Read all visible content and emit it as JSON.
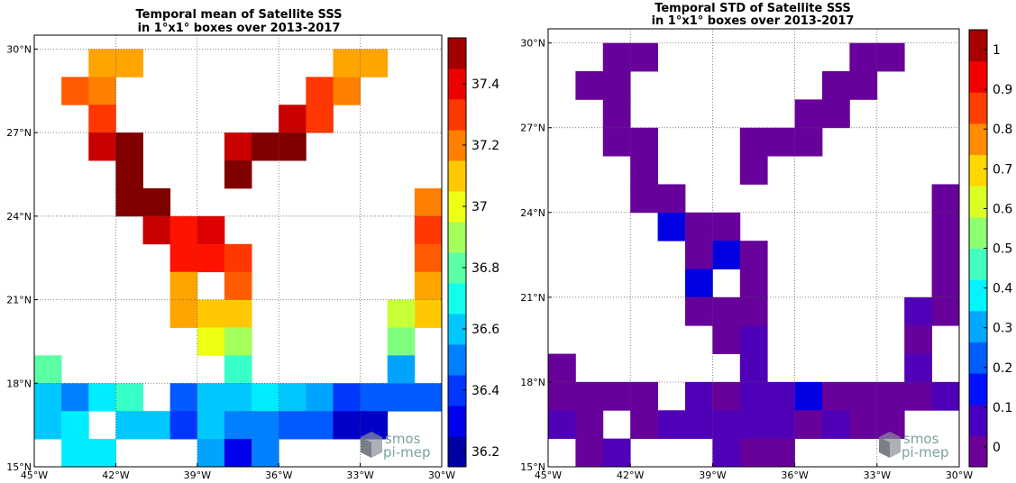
{
  "chart_data": [
    {
      "type": "heatmap",
      "title": "Temporal mean of Satellite SSS",
      "subtitle": "in 1°x1° boxes over 2013-2017",
      "xlim": [
        -45,
        -30
      ],
      "ylim": [
        15,
        30.5
      ],
      "x_ticks": [
        -45,
        -42,
        -39,
        -36,
        -33,
        -30
      ],
      "x_tick_labels": [
        "45°W",
        "42°W",
        "39°W",
        "36°W",
        "33°W",
        "30°W"
      ],
      "y_ticks": [
        15,
        18,
        21,
        24,
        27,
        30
      ],
      "y_tick_labels": [
        "15°N",
        "18°N",
        "21°N",
        "24°N",
        "27°N",
        "30°N"
      ],
      "grid": true,
      "colorbar": {
        "range": [
          36.15,
          37.55
        ],
        "ticks": [
          36.2,
          36.4,
          36.6,
          36.8,
          37,
          37.2,
          37.4
        ],
        "tick_labels": [
          "36.2",
          "36.4",
          "36.6",
          "36.8",
          "37",
          "37.2",
          "37.4"
        ]
      },
      "cells_note": "each cell: [lon_west, lat_south, value]",
      "cells": [
        [
          -43,
          29,
          37.15
        ],
        [
          -42,
          29,
          37.15
        ],
        [
          -44,
          28,
          37.25
        ],
        [
          -43,
          28,
          37.2
        ],
        [
          -43,
          27,
          37.3
        ],
        [
          -43,
          26,
          37.45
        ],
        [
          -42,
          26,
          37.55
        ],
        [
          -42,
          25,
          37.55
        ],
        [
          -42,
          24,
          37.55
        ],
        [
          -41,
          24,
          37.55
        ],
        [
          -41,
          23,
          37.45
        ],
        [
          -40,
          23,
          37.35
        ],
        [
          -39,
          23,
          37.42
        ],
        [
          -40,
          22,
          37.35
        ],
        [
          -39,
          22,
          37.35
        ],
        [
          -38,
          22,
          37.3
        ],
        [
          -40,
          21,
          37.15
        ],
        [
          -38,
          21,
          37.25
        ],
        [
          -40,
          20,
          37.15
        ],
        [
          -39,
          20,
          37.1
        ],
        [
          -38,
          20,
          37.1
        ],
        [
          -39,
          19,
          37.0
        ],
        [
          -38,
          19,
          36.9
        ],
        [
          -45,
          18,
          36.8
        ],
        [
          -38,
          18,
          36.75
        ],
        [
          -45,
          17,
          36.6
        ],
        [
          -44,
          17,
          36.5
        ],
        [
          -43,
          17,
          36.65
        ],
        [
          -42,
          17,
          36.75
        ],
        [
          -40,
          17,
          36.45
        ],
        [
          -39,
          17,
          36.6
        ],
        [
          -38,
          17,
          36.6
        ],
        [
          -37,
          17,
          36.65
        ],
        [
          -36,
          17,
          36.6
        ],
        [
          -35,
          17,
          36.55
        ],
        [
          -34,
          17,
          36.4
        ],
        [
          -33,
          17,
          36.45
        ],
        [
          -32,
          17,
          36.45
        ],
        [
          -31,
          17,
          36.45
        ],
        [
          -45,
          16,
          36.6
        ],
        [
          -44,
          16,
          36.65
        ],
        [
          -42,
          16,
          36.6
        ],
        [
          -41,
          16,
          36.6
        ],
        [
          -40,
          16,
          36.4
        ],
        [
          -39,
          16,
          36.6
        ],
        [
          -38,
          16,
          36.5
        ],
        [
          -37,
          16,
          36.5
        ],
        [
          -36,
          16,
          36.45
        ],
        [
          -35,
          16,
          36.45
        ],
        [
          -34,
          16,
          36.25
        ],
        [
          -33,
          16,
          36.25
        ],
        [
          -44,
          15,
          36.65
        ],
        [
          -43,
          15,
          36.65
        ],
        [
          -39,
          15,
          36.55
        ],
        [
          -38,
          15,
          36.3
        ],
        [
          -37,
          15,
          36.5
        ],
        [
          -38,
          26,
          37.45
        ],
        [
          -37,
          26,
          37.55
        ],
        [
          -36,
          26,
          37.55
        ],
        [
          -36,
          27,
          37.45
        ],
        [
          -38,
          25,
          37.55
        ],
        [
          -35,
          28,
          37.3
        ],
        [
          -34,
          28,
          37.2
        ],
        [
          -35,
          27,
          37.3
        ],
        [
          -34,
          29,
          37.15
        ],
        [
          -33,
          29,
          37.15
        ],
        [
          -31,
          24,
          37.2
        ],
        [
          -31,
          23,
          37.3
        ],
        [
          -31,
          22,
          37.25
        ],
        [
          -31,
          21,
          37.15
        ],
        [
          -31,
          20,
          37.1
        ],
        [
          -32,
          20,
          36.95
        ],
        [
          -32,
          19,
          36.85
        ],
        [
          -32,
          18,
          36.55
        ]
      ]
    },
    {
      "type": "heatmap",
      "title": "Temporal STD of Satellite SSS",
      "subtitle": "in 1°x1° boxes over 2013-2017",
      "xlim": [
        -45,
        -30
      ],
      "ylim": [
        15,
        30.5
      ],
      "x_ticks": [
        -45,
        -42,
        -39,
        -36,
        -33,
        -30
      ],
      "x_tick_labels": [
        "45°W",
        "42°W",
        "39°W",
        "36°W",
        "33°W",
        "30°W"
      ],
      "y_ticks": [
        15,
        18,
        21,
        24,
        27,
        30
      ],
      "y_tick_labels": [
        "15°N",
        "18°N",
        "21°N",
        "24°N",
        "27°N",
        "30°N"
      ],
      "grid": true,
      "colorbar": {
        "range": [
          -0.05,
          1.05
        ],
        "ticks": [
          0,
          0.1,
          0.2,
          0.3,
          0.4,
          0.5,
          0.6,
          0.7,
          0.8,
          0.9,
          1
        ],
        "tick_labels": [
          "0",
          "0.1",
          "0.2",
          "0.3",
          "0.4",
          "0.5",
          "0.6",
          "0.7",
          "0.8",
          "0.9",
          "1"
        ]
      },
      "cells_note": "each cell: [lon_west, lat_south, value]",
      "cells": [
        [
          -43,
          29,
          0.0
        ],
        [
          -42,
          29,
          0.0
        ],
        [
          -44,
          28,
          0.0
        ],
        [
          -43,
          28,
          0.0
        ],
        [
          -43,
          27,
          0.0
        ],
        [
          -43,
          26,
          0.0
        ],
        [
          -42,
          26,
          0.0
        ],
        [
          -42,
          25,
          0.0
        ],
        [
          -42,
          24,
          0.0
        ],
        [
          -41,
          24,
          0.0
        ],
        [
          -41,
          23,
          0.1
        ],
        [
          -40,
          23,
          0.0
        ],
        [
          -39,
          23,
          0.0
        ],
        [
          -40,
          22,
          0.0
        ],
        [
          -39,
          22,
          0.1
        ],
        [
          -38,
          22,
          0.0
        ],
        [
          -40,
          21,
          0.1
        ],
        [
          -38,
          21,
          0.0
        ],
        [
          -40,
          20,
          0.0
        ],
        [
          -39,
          20,
          0.0
        ],
        [
          -38,
          20,
          0.0
        ],
        [
          -39,
          19,
          0.0
        ],
        [
          -38,
          19,
          0.05
        ],
        [
          -45,
          18,
          0.0
        ],
        [
          -38,
          18,
          0.05
        ],
        [
          -45,
          17,
          0.0
        ],
        [
          -44,
          17,
          0.0
        ],
        [
          -43,
          17,
          0.0
        ],
        [
          -42,
          17,
          0.0
        ],
        [
          -40,
          17,
          0.05
        ],
        [
          -39,
          17,
          0.0
        ],
        [
          -38,
          17,
          0.05
        ],
        [
          -37,
          17,
          0.05
        ],
        [
          -36,
          17,
          0.1
        ],
        [
          -35,
          17,
          0.0
        ],
        [
          -34,
          17,
          0.0
        ],
        [
          -33,
          17,
          0.0
        ],
        [
          -32,
          17,
          0.0
        ],
        [
          -31,
          17,
          0.05
        ],
        [
          -45,
          16,
          0.05
        ],
        [
          -44,
          16,
          0.0
        ],
        [
          -42,
          16,
          0.0
        ],
        [
          -41,
          16,
          0.05
        ],
        [
          -40,
          16,
          0.05
        ],
        [
          -39,
          16,
          0.05
        ],
        [
          -38,
          16,
          0.05
        ],
        [
          -37,
          16,
          0.05
        ],
        [
          -36,
          16,
          0.0
        ],
        [
          -35,
          16,
          0.05
        ],
        [
          -34,
          16,
          0.0
        ],
        [
          -33,
          16,
          0.0
        ],
        [
          -44,
          15,
          0.0
        ],
        [
          -43,
          15,
          0.05
        ],
        [
          -39,
          15,
          0.05
        ],
        [
          -38,
          15,
          0.0
        ],
        [
          -37,
          15,
          0.0
        ],
        [
          -38,
          26,
          0.0
        ],
        [
          -37,
          26,
          0.0
        ],
        [
          -36,
          26,
          0.0
        ],
        [
          -36,
          27,
          0.0
        ],
        [
          -38,
          25,
          0.0
        ],
        [
          -35,
          28,
          0.0
        ],
        [
          -34,
          28,
          0.0
        ],
        [
          -35,
          27,
          0.0
        ],
        [
          -34,
          29,
          0.0
        ],
        [
          -33,
          29,
          0.0
        ],
        [
          -31,
          24,
          0.0
        ],
        [
          -31,
          23,
          0.0
        ],
        [
          -31,
          22,
          0.0
        ],
        [
          -31,
          21,
          0.0
        ],
        [
          -31,
          20,
          0.0
        ],
        [
          -32,
          20,
          0.05
        ],
        [
          -32,
          19,
          0.0
        ],
        [
          -32,
          18,
          0.05
        ]
      ]
    }
  ],
  "watermark": {
    "line1": "smos",
    "line2": "pi-mep",
    "icon": "satellite-cube-icon",
    "color": "#7aa3a0"
  }
}
